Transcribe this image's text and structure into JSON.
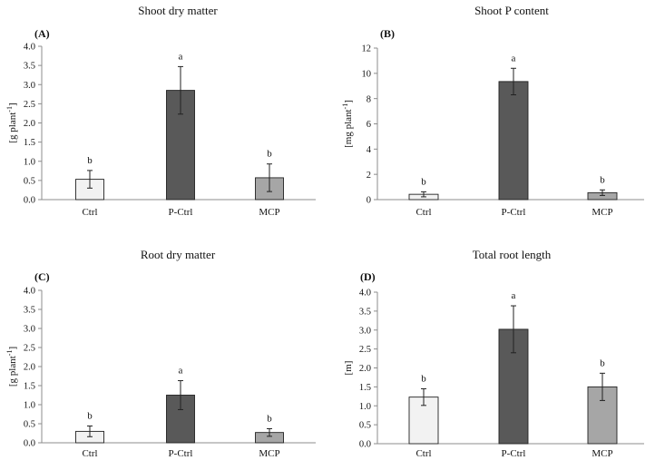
{
  "chart_data": [
    {
      "type": "bar",
      "panel": "(A)",
      "title": "Shoot dry matter",
      "ylabel": "[g plant",
      "ylabel_sup": "-1",
      "ylabel_close": "]",
      "categories": [
        "Ctrl",
        "P-Ctrl",
        "MCP"
      ],
      "values": [
        0.53,
        2.85,
        0.57
      ],
      "errors": [
        0.23,
        0.62,
        0.36
      ],
      "significance": [
        "b",
        "a",
        "b"
      ],
      "ylim": [
        0,
        4.0
      ],
      "yticks": [
        "0.0",
        "0.5",
        "1.0",
        "1.5",
        "2.0",
        "2.5",
        "3.0",
        "3.5",
        "4.0"
      ],
      "colors": [
        "#f2f2f2",
        "#595959",
        "#a6a6a6"
      ]
    },
    {
      "type": "bar",
      "panel": "(B)",
      "title": "Shoot P content",
      "ylabel": "[mg plant",
      "ylabel_sup": "-1",
      "ylabel_close": "]",
      "categories": [
        "Ctrl",
        "P-Ctrl",
        "MCP"
      ],
      "values": [
        0.42,
        9.35,
        0.55
      ],
      "errors": [
        0.2,
        1.05,
        0.22
      ],
      "significance": [
        "b",
        "a",
        "b"
      ],
      "ylim": [
        0,
        12
      ],
      "yticks": [
        "0",
        "2",
        "4",
        "6",
        "8",
        "10",
        "12"
      ],
      "colors": [
        "#f2f2f2",
        "#595959",
        "#a6a6a6"
      ]
    },
    {
      "type": "bar",
      "panel": "(C)",
      "title": "Root dry matter",
      "ylabel": "[g plant",
      "ylabel_sup": "-1",
      "ylabel_close": "]",
      "categories": [
        "Ctrl",
        "P-Ctrl",
        "MCP"
      ],
      "values": [
        0.3,
        1.25,
        0.27
      ],
      "errors": [
        0.14,
        0.38,
        0.1
      ],
      "significance": [
        "b",
        "a",
        "b"
      ],
      "ylim": [
        0,
        4.0
      ],
      "yticks": [
        "0.0",
        "0.5",
        "1.0",
        "1.5",
        "2.0",
        "2.5",
        "3.0",
        "3.5",
        "4.0"
      ],
      "colors": [
        "#f2f2f2",
        "#595959",
        "#a6a6a6"
      ]
    },
    {
      "type": "bar",
      "panel": "(D)",
      "title": "Total root length",
      "ylabel": "[m]",
      "ylabel_sup": "",
      "ylabel_close": "",
      "categories": [
        "Ctrl",
        "P-Ctrl",
        "MCP"
      ],
      "values": [
        1.23,
        3.02,
        1.5
      ],
      "errors": [
        0.22,
        0.62,
        0.36
      ],
      "significance": [
        "b",
        "a",
        "b"
      ],
      "ylim": [
        0,
        4.0
      ],
      "yticks": [
        "0.0",
        "0.5",
        "1.0",
        "1.5",
        "2.0",
        "2.5",
        "3.0",
        "3.5",
        "4.0"
      ],
      "colors": [
        "#f2f2f2",
        "#595959",
        "#a6a6a6"
      ]
    }
  ]
}
